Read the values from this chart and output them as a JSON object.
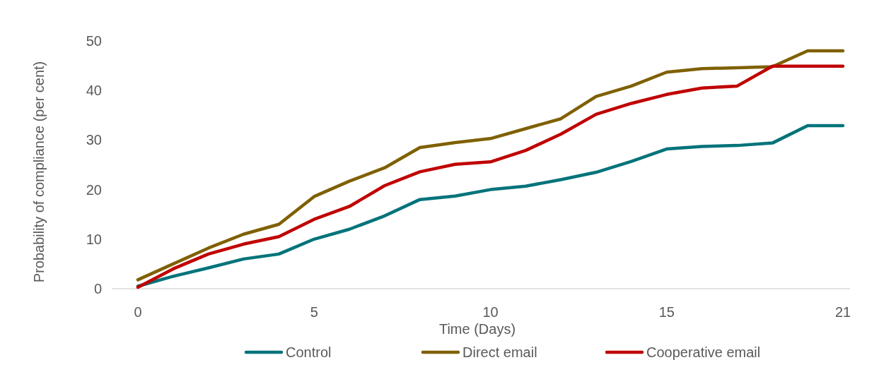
{
  "chart_data": {
    "type": "line",
    "xlabel": "Time (Days)",
    "ylabel": "Probability of compliance (per cent)",
    "categories": [
      "0",
      null,
      null,
      null,
      null,
      "5",
      null,
      null,
      null,
      null,
      "10",
      null,
      null,
      null,
      null,
      "15",
      null,
      null,
      null,
      null,
      "21"
    ],
    "ylim": [
      0,
      50
    ],
    "yticks": [
      0,
      10,
      20,
      30,
      40,
      50
    ],
    "legend": "bottom",
    "grid": false,
    "series": [
      {
        "name": "Control",
        "color": "#00737a",
        "values": [
          0.5,
          2.5,
          4.2,
          6,
          7,
          10,
          12,
          14.7,
          18,
          18.7,
          20,
          20.7,
          22,
          23.5,
          25.7,
          28.2,
          28.7,
          28.9,
          29.4,
          32.9,
          32.9
        ]
      },
      {
        "name": "Direct email",
        "color": "#7f6000",
        "values": [
          1.8,
          5,
          8.2,
          11,
          13,
          18.6,
          21.7,
          24.4,
          28.5,
          29.5,
          30.3,
          32.3,
          34.3,
          38.8,
          40.9,
          43.7,
          44.4,
          44.6,
          44.8,
          48,
          48
        ]
      },
      {
        "name": "Cooperative email",
        "color": "#c00000",
        "values": [
          0.3,
          4,
          7,
          9,
          10.5,
          14,
          16.6,
          20.8,
          23.6,
          25.1,
          25.6,
          27.9,
          31.2,
          35.2,
          37.4,
          39.2,
          40.5,
          40.9,
          44.9,
          44.9,
          44.9
        ]
      }
    ]
  }
}
